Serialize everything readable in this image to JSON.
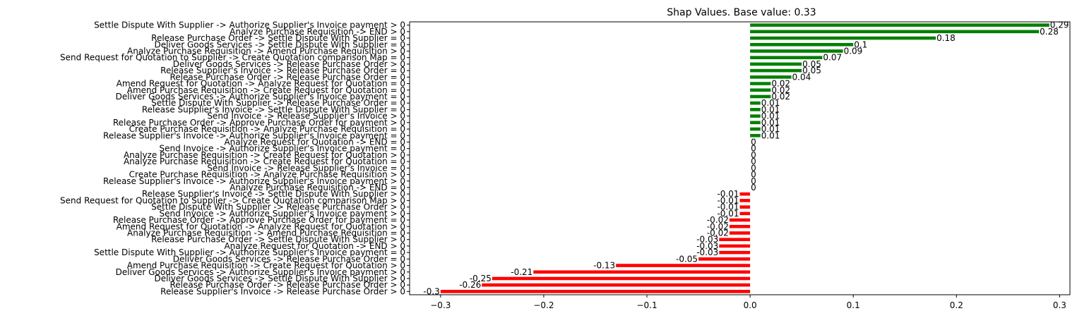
{
  "chart_data": {
    "type": "bar",
    "orientation": "horizontal",
    "title": "Shap Values. Base value: 0.33",
    "xlabel": "",
    "ylabel": "",
    "xlim": [
      -0.33,
      0.31
    ],
    "xticks": [
      -0.3,
      -0.2,
      -0.1,
      0.0,
      0.1,
      0.2,
      0.3
    ],
    "xtick_labels": [
      "−0.3",
      "−0.2",
      "−0.1",
      "0.0",
      "0.1",
      "0.2",
      "0.3"
    ],
    "grid": false,
    "legend": "none",
    "positive_color": "#008000",
    "negative_color": "#ff0000",
    "categories": [
      "Settle Dispute With Supplier -> Authorize Supplier's Invoice payment > 0",
      "Analyze Purchase Requisition -> END > 0",
      "Release Purchase Order -> Settle Dispute With Supplier = 0",
      "Deliver Goods Services -> Settle Dispute With Supplier = 0",
      "Analyze Purchase Requisition -> Amend Purchase Requisition > 0",
      "Send Request for Quotation to Supplier -> Create Quotation comparison Map = 0",
      "Deliver Goods Services -> Release Purchase Order > 0",
      "Release Supplier's Invoice -> Release Purchase Order = 0",
      "Release Purchase Order -> Release Purchase Order = 0",
      "Amend Request for Quotation -> Analyze Request for Quotation = 0",
      "Amend Purchase Requisition -> Create Request for Quotation = 0",
      "Deliver Goods Services -> Authorize Supplier's Invoice payment = 0",
      "Settle Dispute With Supplier -> Release Purchase Order = 0",
      "Release Supplier's Invoice -> Settle Dispute With Supplier = 0",
      "Send Invoice -> Release Supplier's Invoice > 0",
      "Release Purchase Order -> Approve Purchase Order for payment > 0",
      "Create Purchase Requisition -> Analyze Purchase Requisition = 0",
      "Release Supplier's Invoice -> Authorize Supplier's Invoice payment = 0",
      "Analyze Request for Quotation -> END = 0",
      "Send Invoice -> Authorize Supplier's Invoice payment = 0",
      "Analyze Purchase Requisition -> Create Request for Quotation > 0",
      "Analyze Purchase Requisition -> Create Request for Quotation = 0",
      "Send Invoice -> Release Supplier's Invoice = 0",
      "Create Purchase Requisition -> Analyze Purchase Requisition > 0",
      "Release Supplier's Invoice -> Authorize Supplier's Invoice payment > 0",
      "Analyze Purchase Requisition -> END = 0",
      "Release Supplier's Invoice -> Settle Dispute With Supplier > 0",
      "Send Request for Quotation to Supplier -> Create Quotation comparison Map > 0",
      "Settle Dispute With Supplier -> Release Purchase Order > 0",
      "Send Invoice -> Authorize Supplier's Invoice payment > 0",
      "Release Purchase Order -> Approve Purchase Order for payment = 0",
      "Amend Request for Quotation -> Analyze Request for Quotation > 0",
      "Analyze Purchase Requisition -> Amend Purchase Requisition = 0",
      "Release Purchase Order -> Settle Dispute With Supplier > 0",
      "Analyze Request for Quotation -> END > 0",
      "Settle Dispute With Supplier -> Authorize Supplier's Invoice payment = 0",
      "Deliver Goods Services -> Release Purchase Order = 0",
      "Amend Purchase Requisition -> Create Request for Quotation > 0",
      "Deliver Goods Services -> Authorize Supplier's Invoice payment > 0",
      "Deliver Goods Services -> Settle Dispute With Supplier > 0",
      "Release Purchase Order -> Release Purchase Order > 0",
      "Release Supplier's Invoice -> Release Purchase Order > 0"
    ],
    "values": [
      0.29,
      0.28,
      0.18,
      0.1,
      0.09,
      0.07,
      0.05,
      0.05,
      0.04,
      0.02,
      0.02,
      0.02,
      0.01,
      0.01,
      0.01,
      0.01,
      0.01,
      0.01,
      0,
      0,
      0,
      0,
      0,
      0,
      0,
      0,
      -0.01,
      -0.01,
      -0.01,
      -0.01,
      -0.02,
      -0.02,
      -0.02,
      -0.03,
      -0.03,
      -0.03,
      -0.05,
      -0.13,
      -0.21,
      -0.25,
      -0.26,
      -0.3
    ],
    "value_labels": [
      "0.29",
      "0.28",
      "0.18",
      "0.1",
      "0.09",
      "0.07",
      "0.05",
      "0.05",
      "0.04",
      "0.02",
      "0.02",
      "0.02",
      "0.01",
      "0.01",
      "0.01",
      "0.01",
      "0.01",
      "0.01",
      "0",
      "0",
      "0",
      "0",
      "0",
      "0",
      "0",
      "0",
      "-0.01",
      "-0.01",
      "-0.01",
      "-0.01",
      "-0.02",
      "-0.02",
      "-0.02",
      "-0.03",
      "-0.03",
      "-0.03",
      "-0.05",
      "-0.13",
      "-0.21",
      "-0.25",
      "-0.26",
      "-0.3"
    ]
  }
}
